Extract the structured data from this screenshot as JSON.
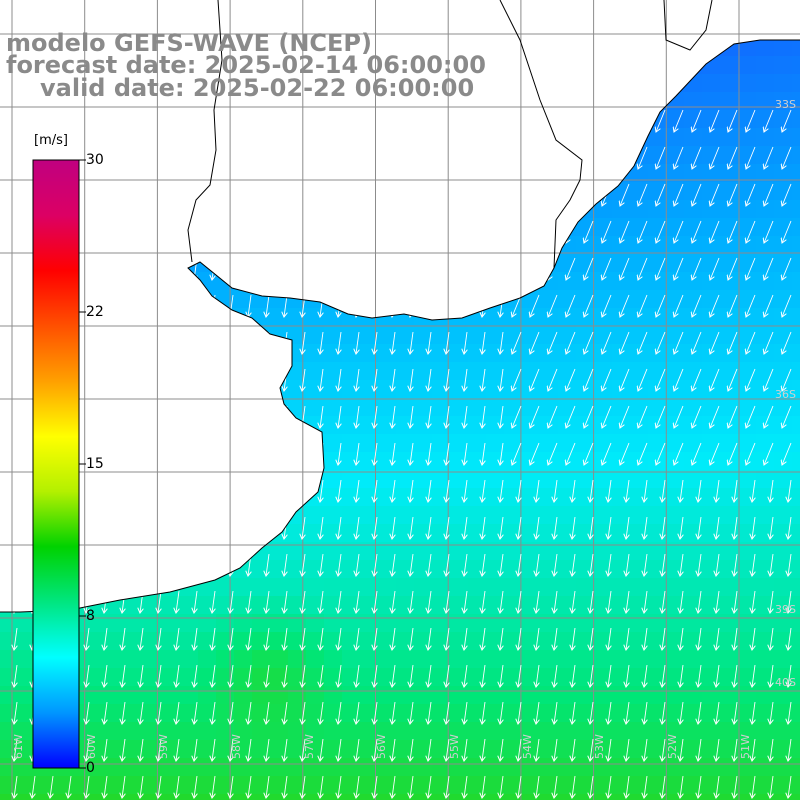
{
  "title": {
    "line1": "modelo GEFS-WAVE (NCEP)",
    "line2": "forecast date: 2025-02-14 06:00:00",
    "line3": "valid date: 2025-02-22 06:00:00"
  },
  "colorbar": {
    "unit": "[m/s]",
    "ticks": [
      "30",
      "22",
      "15",
      "8",
      "0"
    ],
    "colors": [
      "#0000ff",
      "#0096ff",
      "#00ffff",
      "#00e680",
      "#00d200",
      "#b4f000",
      "#ffff00",
      "#ffa000",
      "#ff5000",
      "#ff0000",
      "#dc0064",
      "#c00080"
    ]
  },
  "map": {
    "land_color": "#ffffff",
    "coast_color": "#000000",
    "grid_color": "#8c8c8c",
    "arrow_color": "#ffffff",
    "lat_labels": [
      "33S",
      "36S",
      "39S",
      "40S"
    ],
    "lon_labels": [
      "61W",
      "60W",
      "59W",
      "58W",
      "57W",
      "56W",
      "55W",
      "54W",
      "53W",
      "52W",
      "51W"
    ]
  }
}
